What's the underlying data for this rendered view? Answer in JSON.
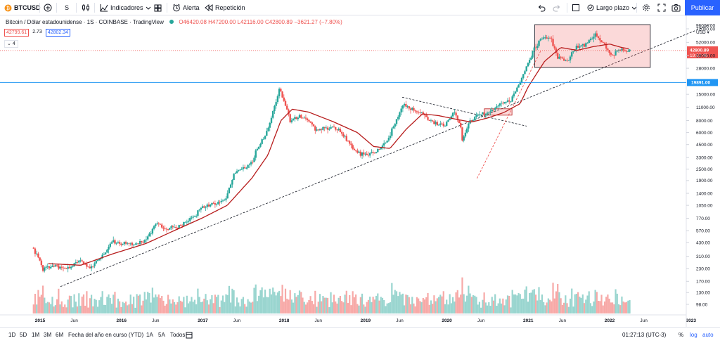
{
  "toolbar": {
    "symbol": "BTCUSD",
    "interval": "S",
    "indicators_label": "Indicadores",
    "alert_label": "Alerta",
    "replay_label": "Repetición",
    "layout_label": "Largo plazo",
    "publish_label": "Publicar",
    "icons": [
      "symbol-logo-icon",
      "add-compare-icon",
      "bar-style-icon",
      "indicators-icon",
      "templates-icon",
      "alert-icon",
      "replay-icon",
      "undo-icon",
      "redo-icon",
      "layout-icon",
      "chevron-down-icon",
      "settings-icon",
      "fullscreen-icon",
      "camera-icon"
    ]
  },
  "legend": {
    "title": "Bitcoin / Dólar estadounidense · 1S · COINBASE · TradingView",
    "ohlc": "O46420.08 H47200.00 L42116.00 C42800.89 −3621.27 (−7.80%)",
    "bid": "42799.61",
    "spread": "2.73",
    "ask": "42802.34",
    "collapse": "4"
  },
  "price_axis": {
    "currency": "USD",
    "current_price": "42800.89",
    "countdown": "19:32:48",
    "hline_price": "19891.00",
    "hline_price_value": 19891,
    "current_price_value": 42800.89,
    "price_color": "#ef5350",
    "hline_color": "#2196f3"
  },
  "bottom_bar": {
    "ranges": [
      "1D",
      "5D",
      "1M",
      "3M",
      "6M",
      "Fecha del año en curso (YTD)",
      "1A",
      "5A",
      "Todos"
    ],
    "clock": "01:27:13 (UTC-3)",
    "percent_label": "%",
    "log_label": "log",
    "auto_label": "auto"
  },
  "chart_data": {
    "type": "candlestick",
    "scale": "log",
    "y_ticks": [
      96000.0,
      72000.0,
      52000.0,
      38000.0,
      28000.0,
      15000.0,
      11000.0,
      8000.0,
      6000.0,
      4500.0,
      3300.0,
      2500.0,
      1900.0,
      1400.0,
      1050.0,
      770.0,
      570.0,
      430.0,
      310.0,
      230.0,
      170.0,
      130.0,
      98.0
    ],
    "x_ticks": [
      "2015",
      "Jun",
      "2016",
      "Jun",
      "2017",
      "Jun",
      "2018",
      "Jun",
      "2019",
      "Jun",
      "2020",
      "Jun",
      "2021",
      "Jun",
      "2022",
      "Jun",
      "2023"
    ],
    "x_tick_dates": [
      2015.0,
      2015.42,
      2016.0,
      2016.42,
      2017.0,
      2017.42,
      2018.0,
      2018.42,
      2019.0,
      2019.42,
      2020.0,
      2020.42,
      2021.0,
      2021.42,
      2022.0,
      2022.42,
      2023.0
    ],
    "price_path": [
      [
        2014.92,
        380
      ],
      [
        2015.0,
        300
      ],
      [
        2015.05,
        230
      ],
      [
        2015.2,
        245
      ],
      [
        2015.35,
        225
      ],
      [
        2015.5,
        280
      ],
      [
        2015.65,
        235
      ],
      [
        2015.8,
        320
      ],
      [
        2015.9,
        430
      ],
      [
        2016.0,
        430
      ],
      [
        2016.15,
        410
      ],
      [
        2016.3,
        450
      ],
      [
        2016.45,
        670
      ],
      [
        2016.6,
        600
      ],
      [
        2016.75,
        640
      ],
      [
        2016.9,
        780
      ],
      [
        2017.0,
        980
      ],
      [
        2017.1,
        1050
      ],
      [
        2017.2,
        1120
      ],
      [
        2017.3,
        1250
      ],
      [
        2017.4,
        2200
      ],
      [
        2017.5,
        2500
      ],
      [
        2017.6,
        2700
      ],
      [
        2017.7,
        4300
      ],
      [
        2017.8,
        5800
      ],
      [
        2017.9,
        11000
      ],
      [
        2017.96,
        17000
      ],
      [
        2018.0,
        14000
      ],
      [
        2018.05,
        11000
      ],
      [
        2018.1,
        7500
      ],
      [
        2018.2,
        9000
      ],
      [
        2018.3,
        8200
      ],
      [
        2018.4,
        6500
      ],
      [
        2018.5,
        6500
      ],
      [
        2018.6,
        6800
      ],
      [
        2018.7,
        6400
      ],
      [
        2018.85,
        4200
      ],
      [
        2018.95,
        3600
      ],
      [
        2019.05,
        3500
      ],
      [
        2019.2,
        4000
      ],
      [
        2019.3,
        5300
      ],
      [
        2019.42,
        9000
      ],
      [
        2019.5,
        12000
      ],
      [
        2019.6,
        10500
      ],
      [
        2019.7,
        9700
      ],
      [
        2019.8,
        8200
      ],
      [
        2019.9,
        7300
      ],
      [
        2020.0,
        7200
      ],
      [
        2020.1,
        9800
      ],
      [
        2020.18,
        7400
      ],
      [
        2020.21,
        5000
      ],
      [
        2020.3,
        7800
      ],
      [
        2020.4,
        9200
      ],
      [
        2020.55,
        9500
      ],
      [
        2020.65,
        11500
      ],
      [
        2020.8,
        13000
      ],
      [
        2020.9,
        18500
      ],
      [
        2021.0,
        29000
      ],
      [
        2021.1,
        47000
      ],
      [
        2021.2,
        58000
      ],
      [
        2021.3,
        57000
      ],
      [
        2021.38,
        37000
      ],
      [
        2021.5,
        33000
      ],
      [
        2021.6,
        46000
      ],
      [
        2021.7,
        48000
      ],
      [
        2021.85,
        64000
      ],
      [
        2021.95,
        50000
      ],
      [
        2022.05,
        38000
      ],
      [
        2022.12,
        44000
      ],
      [
        2022.2,
        43000
      ],
      [
        2022.25,
        42800
      ]
    ],
    "ma_path": [
      [
        2015.1,
        260
      ],
      [
        2015.5,
        250
      ],
      [
        2015.9,
        330
      ],
      [
        2016.3,
        420
      ],
      [
        2016.7,
        600
      ],
      [
        2017.0,
        780
      ],
      [
        2017.3,
        1050
      ],
      [
        2017.6,
        2000
      ],
      [
        2017.8,
        3500
      ],
      [
        2017.96,
        8000
      ],
      [
        2018.1,
        10500
      ],
      [
        2018.3,
        9800
      ],
      [
        2018.6,
        7800
      ],
      [
        2018.9,
        6000
      ],
      [
        2019.1,
        4300
      ],
      [
        2019.3,
        4100
      ],
      [
        2019.5,
        6500
      ],
      [
        2019.7,
        9400
      ],
      [
        2019.9,
        9000
      ],
      [
        2020.1,
        8300
      ],
      [
        2020.3,
        7700
      ],
      [
        2020.5,
        8500
      ],
      [
        2020.7,
        9700
      ],
      [
        2020.9,
        12000
      ],
      [
        2021.0,
        18000
      ],
      [
        2021.2,
        33000
      ],
      [
        2021.4,
        46000
      ],
      [
        2021.6,
        43000
      ],
      [
        2021.8,
        47000
      ],
      [
        2022.0,
        50000
      ],
      [
        2022.15,
        46000
      ],
      [
        2022.25,
        44500
      ]
    ]
  }
}
